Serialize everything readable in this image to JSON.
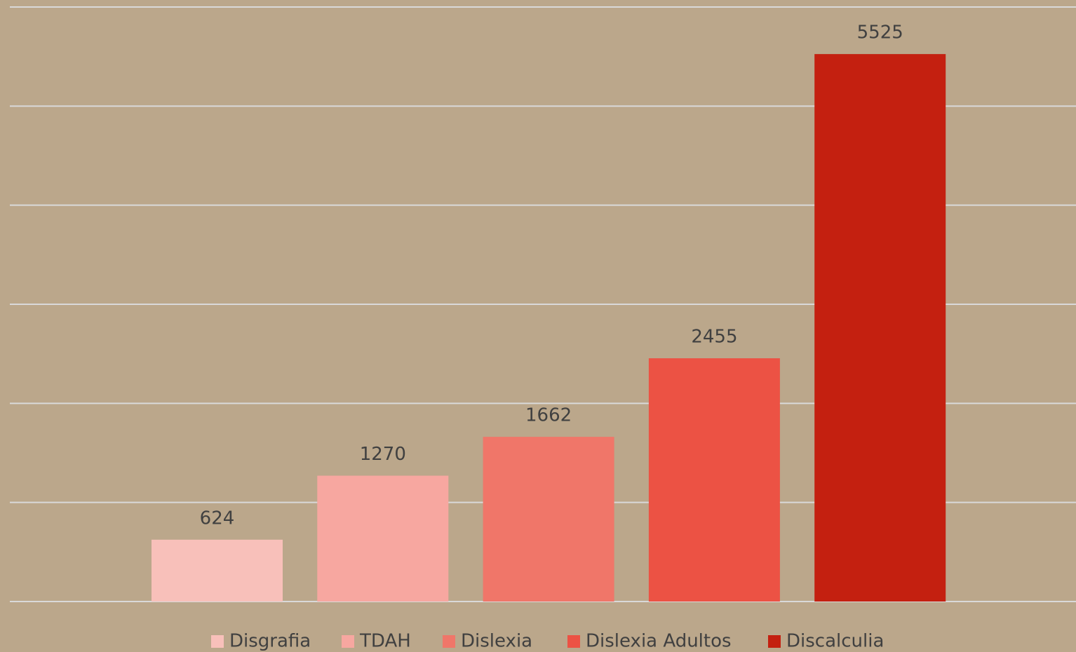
{
  "chart_data": {
    "type": "bar",
    "series": [
      {
        "name": "Disgrafia",
        "color": "#f8c0ba",
        "values": [
          624
        ]
      },
      {
        "name": "TDAH",
        "color": "#f7a7a0",
        "values": [
          1270
        ]
      },
      {
        "name": "Dislexia",
        "color": "#f07669",
        "values": [
          1662
        ]
      },
      {
        "name": "Dislexia Adultos",
        "color": "#ec5244",
        "values": [
          2455
        ]
      },
      {
        "name": "Discalculia",
        "color": "#c42010",
        "values": [
          5525
        ]
      }
    ],
    "ylim": [
      0,
      6000
    ],
    "yticks": [
      0,
      1000,
      2000,
      3000,
      4000,
      5000,
      6000
    ],
    "grid": true,
    "legend": "bottom"
  }
}
